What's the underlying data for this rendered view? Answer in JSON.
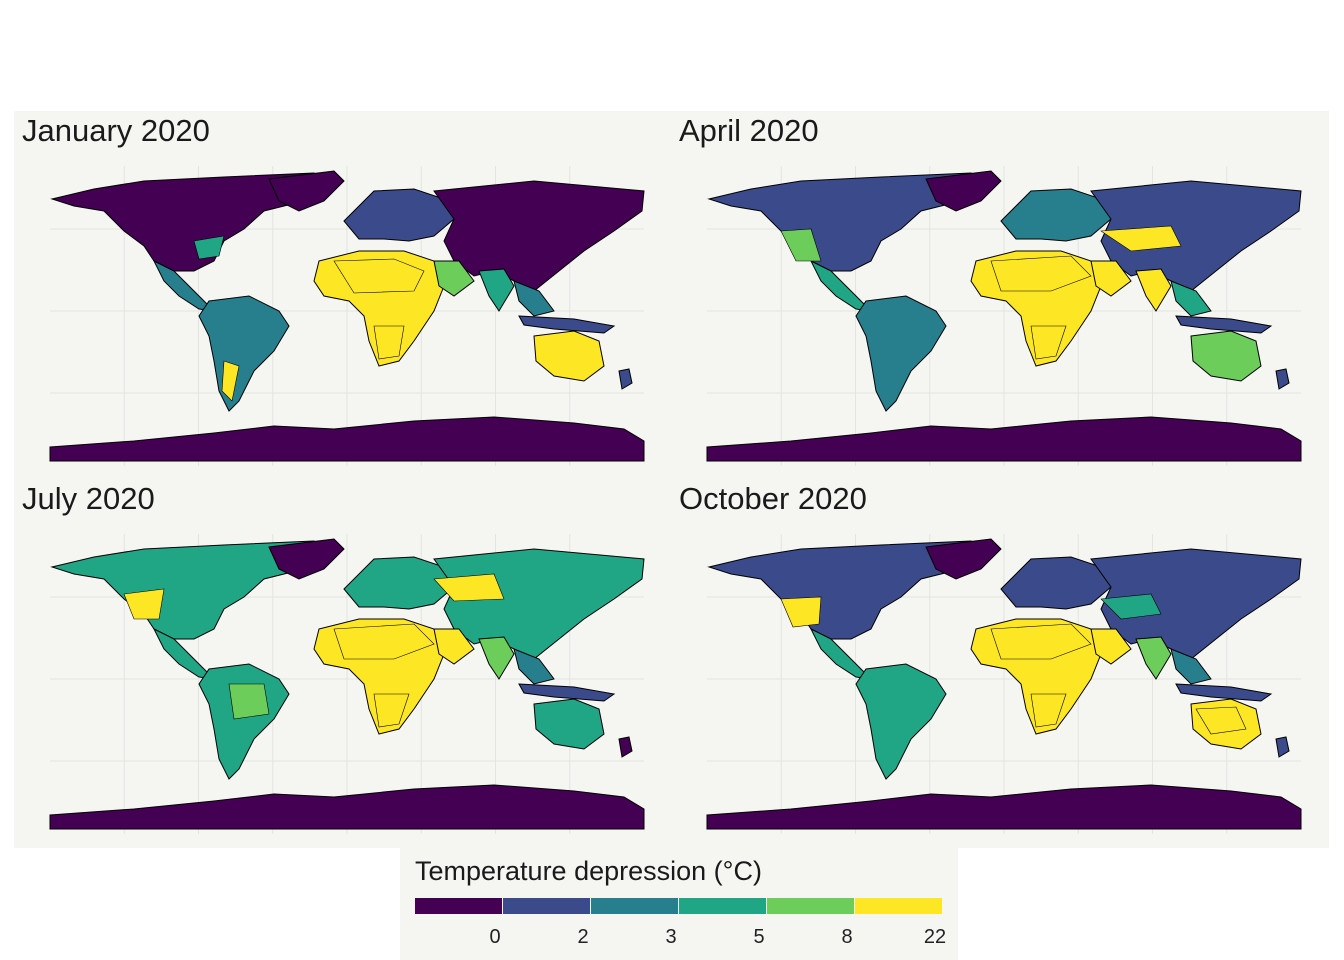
{
  "panels": [
    {
      "title": "January 2020"
    },
    {
      "title": "April 2020"
    },
    {
      "title": "July 2020"
    },
    {
      "title": "October 2020"
    }
  ],
  "legend": {
    "title": "Temperature depression (°C)",
    "breaks": [
      "0",
      "2",
      "3",
      "5",
      "8",
      "22"
    ],
    "colors": [
      "#440154",
      "#3b4a8a",
      "#277f8e",
      "#21a685",
      "#6ccd5a",
      "#fde725"
    ]
  },
  "colors": {
    "panel_background": "#f5f5f2",
    "antarctica": "#440154",
    "border": "#000000"
  }
}
